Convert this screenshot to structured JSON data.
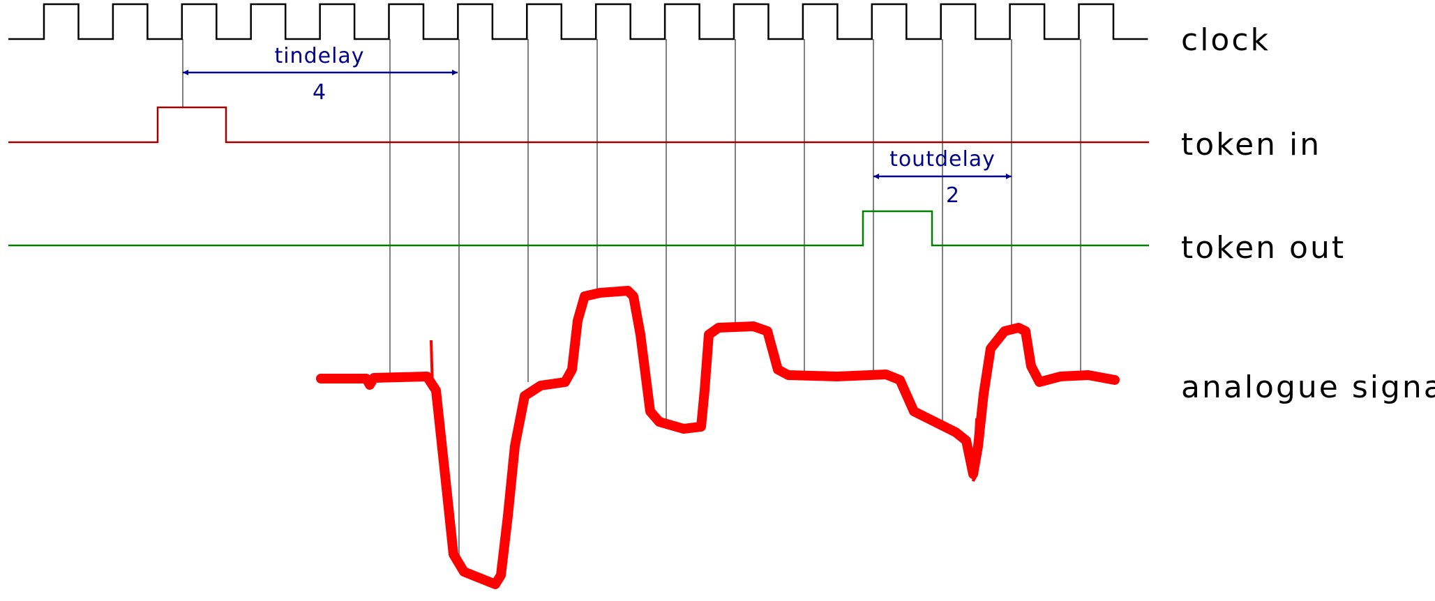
{
  "signals": {
    "clock": "clock",
    "token_in": "token in",
    "token_out": "token out",
    "analogue": "analogue signal"
  },
  "annotations": {
    "tindelay": {
      "label": "tindelay",
      "value": "4"
    },
    "toutdelay": {
      "label": "toutdelay",
      "value": "2"
    }
  },
  "colors": {
    "clock": "#000000",
    "token_in": "#a00000",
    "token_out": "#008000",
    "analogue": "#ff0000",
    "dimension": "#00008b",
    "guide": "#808080"
  }
}
